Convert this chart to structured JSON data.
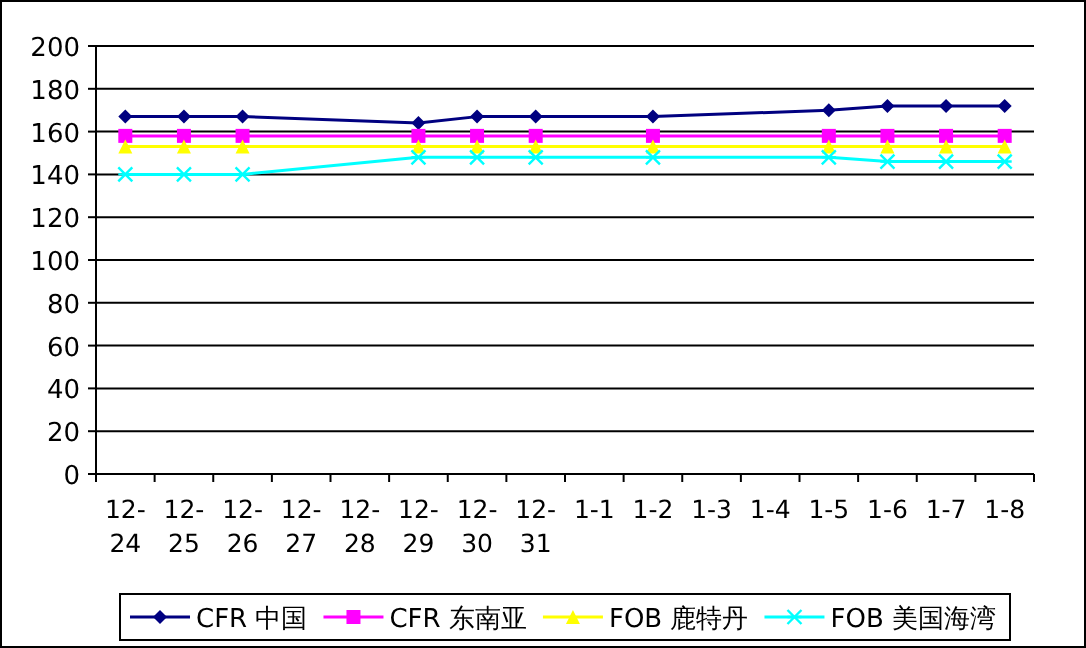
{
  "chart_data": {
    "type": "line",
    "categories": [
      "12-\n24",
      "12-\n25",
      "12-\n26",
      "12-\n27",
      "12-\n28",
      "12-\n29",
      "12-\n30",
      "12-\n31",
      "1-1",
      "1-2",
      "1-3",
      "1-4",
      "1-5",
      "1-6",
      "1-7",
      "1-8"
    ],
    "series": [
      {
        "name": "CFR 中国",
        "color": "#000080",
        "marker": "diamond",
        "values": [
          167,
          167,
          167,
          null,
          null,
          164,
          167,
          167,
          null,
          167,
          null,
          null,
          170,
          172,
          172,
          172
        ]
      },
      {
        "name": "CFR 东南亚",
        "color": "#ff00ff",
        "marker": "square",
        "values": [
          158,
          158,
          158,
          null,
          null,
          158,
          158,
          158,
          null,
          158,
          null,
          null,
          158,
          158,
          158,
          158
        ]
      },
      {
        "name": "FOB 鹿特丹",
        "color": "#ffff00",
        "marker": "triangle",
        "values": [
          153,
          153,
          153,
          null,
          null,
          153,
          153,
          153,
          null,
          153,
          null,
          null,
          153,
          153,
          153,
          153
        ]
      },
      {
        "name": "FOB 美国海湾",
        "color": "#00ffff",
        "marker": "cross",
        "values": [
          140,
          140,
          140,
          null,
          null,
          148,
          148,
          148,
          null,
          148,
          null,
          null,
          148,
          146,
          146,
          146
        ]
      }
    ],
    "ylim": [
      0,
      200
    ],
    "yticks": [
      0,
      20,
      40,
      60,
      80,
      100,
      120,
      140,
      160,
      180,
      200
    ],
    "grid": "y",
    "legend": "bottom"
  }
}
